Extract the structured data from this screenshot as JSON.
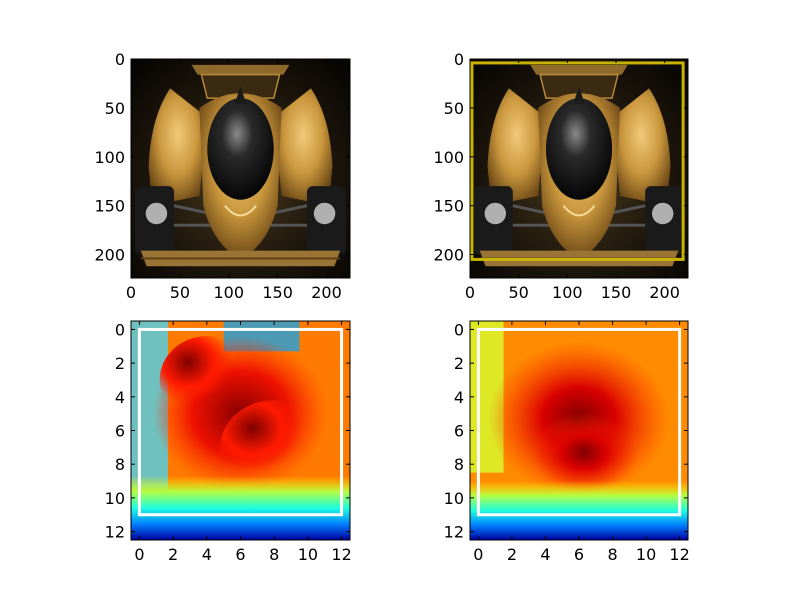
{
  "panels": [
    {
      "name": "top-left-photo",
      "kind": "photo",
      "xticks": [
        "0",
        "50",
        "100",
        "150",
        "200"
      ],
      "yticks": [
        "0",
        "50",
        "100",
        "150",
        "200"
      ],
      "xtick_values": [
        0,
        50,
        100,
        150,
        200
      ],
      "ytick_values": [
        0,
        50,
        100,
        150,
        200
      ],
      "range": [
        0,
        224
      ]
    },
    {
      "name": "top-right-photo-box",
      "kind": "photo",
      "xticks": [
        "0",
        "50",
        "100",
        "150",
        "200"
      ],
      "yticks": [
        "0",
        "50",
        "100",
        "150",
        "200"
      ],
      "xtick_values": [
        0,
        50,
        100,
        150,
        200
      ],
      "ytick_values": [
        0,
        50,
        100,
        150,
        200
      ],
      "range": [
        0,
        224
      ],
      "box": {
        "x0": 2,
        "y0": 4,
        "x1": 219,
        "y1": 205
      },
      "box_color": "#c8b400"
    },
    {
      "name": "bottom-left-heatmap",
      "kind": "heatmap",
      "xticks": [
        "0",
        "2",
        "4",
        "6",
        "8",
        "10",
        "12"
      ],
      "yticks": [
        "0",
        "2",
        "4",
        "6",
        "8",
        "10",
        "12"
      ],
      "xtick_values": [
        0,
        2,
        4,
        6,
        8,
        10,
        12
      ],
      "ytick_values": [
        0,
        2,
        4,
        6,
        8,
        10,
        12
      ],
      "range": [
        -0.5,
        12.5
      ],
      "box": {
        "x0": 0,
        "y0": 0,
        "x1": 12,
        "y1": 11
      },
      "box_color": "#ffffff"
    },
    {
      "name": "bottom-right-heatmap",
      "kind": "heatmap",
      "xticks": [
        "0",
        "2",
        "4",
        "6",
        "8",
        "10",
        "12"
      ],
      "yticks": [
        "0",
        "2",
        "4",
        "6",
        "8",
        "10",
        "12"
      ],
      "xtick_values": [
        0,
        2,
        4,
        6,
        8,
        10,
        12
      ],
      "ytick_values": [
        0,
        2,
        4,
        6,
        8,
        10,
        12
      ],
      "range": [
        -0.5,
        12.5
      ],
      "box": {
        "x0": 0,
        "y0": 0,
        "x1": 12,
        "y1": 11
      },
      "box_color": "#ffffff"
    }
  ],
  "colors": {
    "jet_low": "#00007f",
    "jet_high": "#7f0000",
    "car_body": "#c9963c",
    "background": "#0d0d0d"
  }
}
